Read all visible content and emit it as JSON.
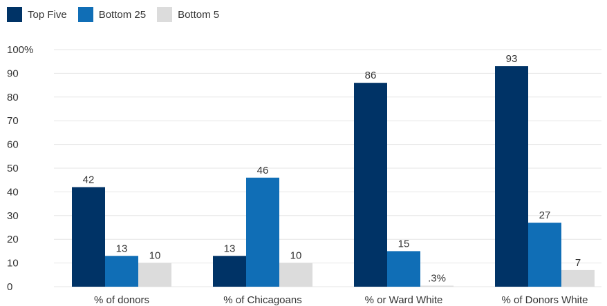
{
  "legend": [
    {
      "name": "Top Five",
      "color": "#003366"
    },
    {
      "name": "Bottom 25",
      "color": "#106eb6"
    },
    {
      "name": "Bottom 5",
      "color": "#dcdcdc"
    }
  ],
  "chart_data": {
    "type": "bar",
    "categories": [
      "% of donors",
      "% of Chicagoans",
      "% or Ward White",
      "% of Donors White"
    ],
    "series": [
      {
        "name": "Top Five",
        "values": [
          42,
          13,
          86,
          93
        ],
        "labels": [
          "42",
          "13",
          "86",
          "93"
        ],
        "color": "#003366"
      },
      {
        "name": "Bottom 25",
        "values": [
          13,
          46,
          15,
          27
        ],
        "labels": [
          "13",
          "46",
          "15",
          "27"
        ],
        "color": "#106eb6"
      },
      {
        "name": "Bottom 5",
        "values": [
          10,
          10,
          0.3,
          7
        ],
        "labels": [
          "10",
          "10",
          ".3%",
          "7"
        ],
        "color": "#dcdcdc"
      }
    ],
    "ylim": [
      0,
      100
    ],
    "yticks": [
      "0",
      "10",
      "20",
      "30",
      "40",
      "50",
      "60",
      "70",
      "80",
      "90",
      "100%"
    ],
    "grid": true,
    "legend_position": "top-left"
  }
}
